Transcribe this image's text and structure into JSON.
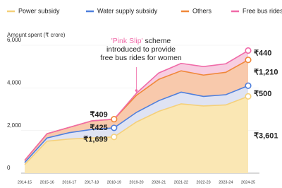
{
  "chart_data": {
    "type": "stacked_area",
    "y_axis_label": "Amount spent (₹ crore)",
    "categories": [
      "2014-15",
      "2015-16",
      "2016-17",
      "2017-18",
      "2018-19",
      "2019-20",
      "2020-21",
      "2021-22",
      "2022-23",
      "2023-24",
      "2024-25"
    ],
    "series": [
      {
        "name": "Power subsidy",
        "color": "#f5d07a",
        "fill": "#fae7b4",
        "values": [
          400,
          1500,
          1600,
          1650,
          1699,
          2400,
          2900,
          3250,
          3150,
          3200,
          3601
        ],
        "value_labels": [
          null,
          null,
          null,
          null,
          "₹1,699",
          null,
          null,
          null,
          null,
          null,
          "₹3,601"
        ]
      },
      {
        "name": "Water supply subsidy",
        "color": "#4f7fdc",
        "fill": "#dfe3f3",
        "values": [
          100,
          150,
          300,
          400,
          425,
          450,
          500,
          550,
          450,
          480,
          500
        ],
        "value_labels": [
          null,
          null,
          null,
          null,
          "₹425",
          null,
          null,
          null,
          null,
          null,
          "₹500"
        ]
      },
      {
        "name": "Others",
        "color": "#f0883a",
        "fill": "#f8c9ac",
        "values": [
          100,
          200,
          250,
          400,
          409,
          800,
          1000,
          1000,
          1000,
          1050,
          1210
        ],
        "value_labels": [
          null,
          null,
          null,
          null,
          "₹409",
          null,
          null,
          null,
          null,
          null,
          "₹1,210"
        ]
      },
      {
        "name": "Free bus rides for women",
        "color": "#f06aa8",
        "fill": "#f7cde0",
        "values": [
          0,
          0,
          0,
          0,
          0,
          100,
          300,
          350,
          400,
          400,
          440
        ],
        "value_labels": [
          null,
          null,
          null,
          null,
          null,
          null,
          null,
          null,
          null,
          null,
          "₹440"
        ]
      }
    ],
    "ylim": [
      0,
      6000
    ],
    "yticks": [
      0,
      {
        "value": 2000,
        "label": "2,000"
      },
      {
        "value": 4000,
        "label": "4,000"
      },
      {
        "value": 6000,
        "label": "6,000"
      }
    ],
    "annotation": {
      "highlight": "'Pink Slip'",
      "lines": [
        " scheme",
        "introduced to provide",
        "free bus rides for women"
      ]
    }
  }
}
